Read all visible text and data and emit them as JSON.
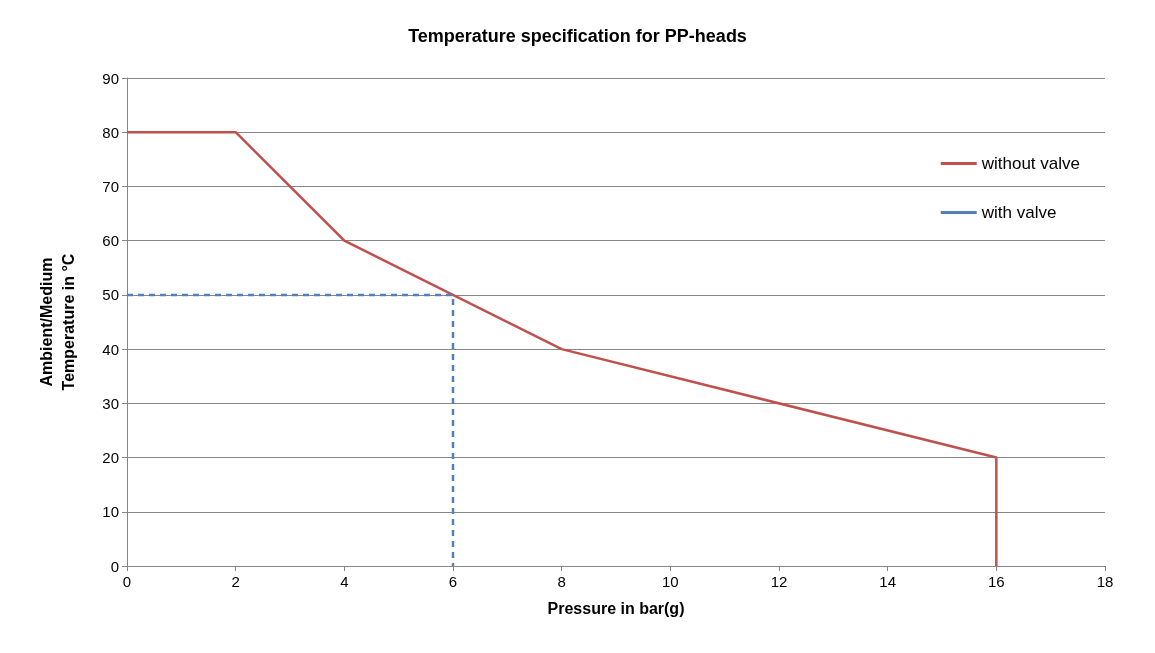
{
  "chart_data": {
    "type": "line",
    "title": "Temperature specification for PP-heads",
    "xlabel": "Pressure in bar(g)",
    "ylabel": "Ambient/Medium\nTemperature in °C",
    "series": [
      {
        "name": "without valve",
        "color": "#c0504d",
        "line_style": "solid",
        "x": [
          0,
          2,
          4,
          8,
          16,
          16
        ],
        "values": [
          80,
          80,
          60,
          40,
          20,
          0
        ]
      },
      {
        "name": "with valve",
        "color": "#4f81bd",
        "line_style": "dashed",
        "x": [
          0,
          6,
          6
        ],
        "values": [
          50,
          50,
          0
        ]
      }
    ],
    "xlim": [
      0,
      18
    ],
    "xticks": [
      0,
      2,
      4,
      6,
      8,
      10,
      12,
      14,
      16,
      18
    ],
    "ylim": [
      0,
      90
    ],
    "yticks": [
      0,
      10,
      20,
      30,
      40,
      50,
      60,
      70,
      80,
      90
    ],
    "grid": "y",
    "legend": "top right",
    "marker": "none"
  }
}
